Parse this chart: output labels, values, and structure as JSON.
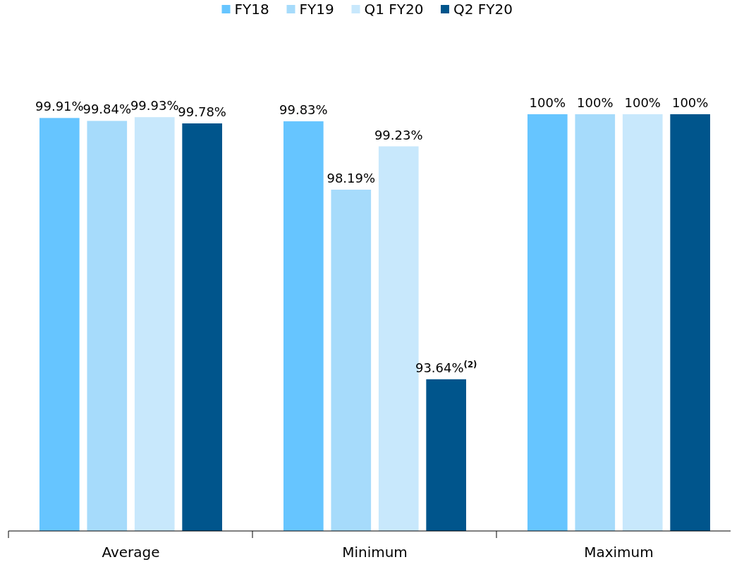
{
  "chart_data": {
    "type": "bar",
    "categories": [
      "Average",
      "Minimum",
      "Maximum"
    ],
    "ylim": [
      90,
      100
    ],
    "legend": "top",
    "series": [
      {
        "name": "FY18",
        "color": "#66c5ff",
        "values": [
          99.91,
          99.83,
          100
        ],
        "value_labels": [
          "99.91%",
          "99.83%",
          "100%"
        ]
      },
      {
        "name": "FY19",
        "color": "#a6dbfb",
        "values": [
          99.84,
          98.19,
          100
        ],
        "value_labels": [
          "99.84%",
          "98.19%",
          "100%"
        ]
      },
      {
        "name": "Q1 FY20",
        "color": "#c8e8fc",
        "values": [
          99.93,
          99.23,
          100
        ],
        "value_labels": [
          "99.93%",
          "99.23%",
          "100%"
        ]
      },
      {
        "name": "Q2 FY20",
        "color": "#00558c",
        "values": [
          99.78,
          93.64,
          100
        ],
        "value_labels": [
          "99.78%",
          "93.64%$^{(2)}$",
          "100%"
        ]
      }
    ]
  }
}
